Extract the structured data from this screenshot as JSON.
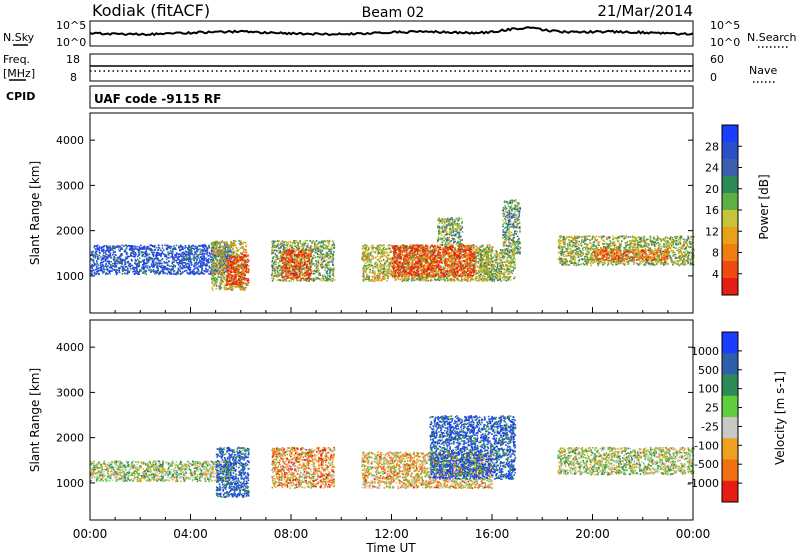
{
  "header": {
    "station": "Kodiak (fitACF)",
    "beam": "Beam 02",
    "date": "21/Mar/2014"
  },
  "info_panels": {
    "nsky_label": "N.Sky",
    "nsearch_label": "N.Search",
    "noise_ticks_left": [
      "10^5",
      "10^0"
    ],
    "noise_ticks_right": [
      "10^5",
      "10^0"
    ],
    "freq_label": "Freq.",
    "freq_unit": "[MHz]",
    "freq_ticks": [
      "18",
      "8"
    ],
    "nave_label": "Nave",
    "nave_ticks": [
      "60",
      "0"
    ],
    "cpid_label": "CPID",
    "cpid_text": "UAF code -9115 RF"
  },
  "chart_data": [
    {
      "type": "heatmap",
      "panel": "power",
      "ylabel": "Slant Range [km]",
      "xlabel": "",
      "ylim": [
        180,
        4600
      ],
      "yticks": [
        "1000",
        "2000",
        "3000",
        "4000"
      ],
      "xticks": [],
      "colorbar": {
        "label": "Power [dB]",
        "ticks": [
          "4",
          "8",
          "12",
          "16",
          "20",
          "24",
          "28"
        ],
        "colors": [
          "#1c3cff",
          "#2a50c8",
          "#3c5fb0",
          "#2e8b57",
          "#5fb043",
          "#c7c43a",
          "#e8a21a",
          "#f07d12",
          "#ef4a12",
          "#e61e12"
        ]
      },
      "echo_regions": [
        {
          "t": [
            0.0,
            5.6
          ],
          "r": [
            1050,
            1700
          ],
          "level": 0.15
        },
        {
          "t": [
            4.8,
            6.2
          ],
          "r": [
            700,
            1800
          ],
          "level": 0.55
        },
        {
          "t": [
            5.4,
            6.3
          ],
          "r": [
            800,
            1500
          ],
          "level": 0.9
        },
        {
          "t": [
            7.2,
            9.7
          ],
          "r": [
            900,
            1800
          ],
          "level": 0.45
        },
        {
          "t": [
            7.6,
            8.8
          ],
          "r": [
            950,
            1600
          ],
          "level": 0.85
        },
        {
          "t": [
            10.8,
            16.0
          ],
          "r": [
            900,
            1700
          ],
          "level": 0.55
        },
        {
          "t": [
            12.0,
            15.3
          ],
          "r": [
            1000,
            1700
          ],
          "level": 0.9
        },
        {
          "t": [
            13.8,
            14.8
          ],
          "r": [
            1700,
            2300
          ],
          "level": 0.45
        },
        {
          "t": [
            15.5,
            16.9
          ],
          "r": [
            900,
            1600
          ],
          "level": 0.5
        },
        {
          "t": [
            16.4,
            17.1
          ],
          "r": [
            1500,
            2700
          ],
          "level": 0.4
        },
        {
          "t": [
            18.6,
            24.0
          ],
          "r": [
            1250,
            1900
          ],
          "level": 0.5
        },
        {
          "t": [
            20.0,
            23.0
          ],
          "r": [
            1350,
            1600
          ],
          "level": 0.8
        }
      ]
    },
    {
      "type": "heatmap",
      "panel": "velocity",
      "ylabel": "Slant Range [km]",
      "xlabel": "Time UT",
      "ylim": [
        180,
        4600
      ],
      "yticks": [
        "1000",
        "2000",
        "3000",
        "4000"
      ],
      "xticks": [
        "00:00",
        "04:00",
        "08:00",
        "12:00",
        "16:00",
        "20:00",
        "00:00"
      ],
      "colorbar": {
        "label": "Velocity [m s-1]",
        "ticks": [
          "1000",
          "500",
          "100",
          "25",
          "-25",
          "-100",
          "-500",
          "-1000"
        ],
        "colors": [
          "#1c3cff",
          "#2f5fa8",
          "#2e8b57",
          "#5fce3c",
          "#c8c8c4",
          "#f0a020",
          "#f07012",
          "#e61e12"
        ]
      },
      "echo_regions": [
        {
          "t": [
            0.0,
            5.6
          ],
          "r": [
            1050,
            1500
          ],
          "level": 0.5
        },
        {
          "t": [
            5.0,
            6.3
          ],
          "r": [
            700,
            1800
          ],
          "level": 0.85
        },
        {
          "t": [
            7.2,
            9.7
          ],
          "r": [
            900,
            1800
          ],
          "level": 0.3
        },
        {
          "t": [
            10.8,
            16.0
          ],
          "r": [
            900,
            1700
          ],
          "level": 0.35
        },
        {
          "t": [
            13.5,
            16.9
          ],
          "r": [
            1100,
            2500
          ],
          "level": 0.85
        },
        {
          "t": [
            18.6,
            24.0
          ],
          "r": [
            1200,
            1800
          ],
          "level": 0.5
        }
      ]
    }
  ]
}
